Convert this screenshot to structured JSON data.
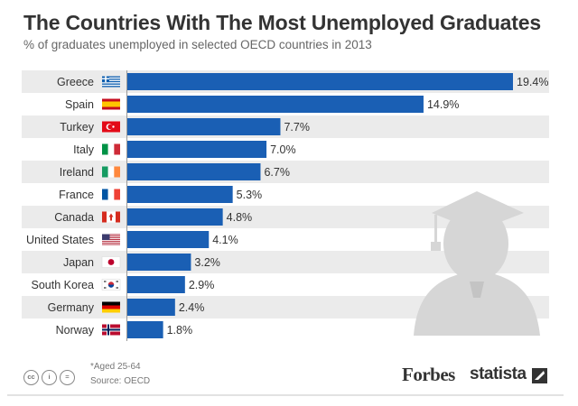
{
  "header": {
    "title": "The Countries With The Most Unemployed Graduates",
    "subtitle": "% of graduates unemployed in selected OECD countries in 2013"
  },
  "footer": {
    "note": "*Aged 25-64",
    "source": "Source: OECD",
    "brand_forbes": "Forbes",
    "brand_statista": "statista"
  },
  "colors": {
    "bar": "#1a5fb4",
    "row_band": "#ebebeb",
    "illustration": "#d6d6d6"
  },
  "chart_data": {
    "type": "bar",
    "orientation": "horizontal",
    "title": "The Countries With The Most Unemployed Graduates",
    "subtitle": "% of graduates unemployed in selected OECD countries in 2013",
    "categories": [
      "Greece",
      "Spain",
      "Turkey",
      "Italy",
      "Ireland",
      "France",
      "Canada",
      "United States",
      "Japan",
      "South Korea",
      "Germany",
      "Norway"
    ],
    "values": [
      19.4,
      14.9,
      7.7,
      7.0,
      6.7,
      5.3,
      4.8,
      4.1,
      3.2,
      2.9,
      2.4,
      1.8
    ],
    "value_labels": [
      "19.4%",
      "14.9%",
      "7.7%",
      "7.0%",
      "6.7%",
      "5.3%",
      "4.8%",
      "4.1%",
      "3.2%",
      "2.9%",
      "2.4%",
      "1.8%"
    ],
    "flags": [
      "greece-flag-icon",
      "spain-flag-icon",
      "turkey-flag-icon",
      "italy-flag-icon",
      "ireland-flag-icon",
      "france-flag-icon",
      "canada-flag-icon",
      "usa-flag-icon",
      "japan-flag-icon",
      "south-korea-flag-icon",
      "germany-flag-icon",
      "norway-flag-icon"
    ],
    "xlim": [
      0,
      19.4
    ],
    "grid": false,
    "legend": "none"
  }
}
